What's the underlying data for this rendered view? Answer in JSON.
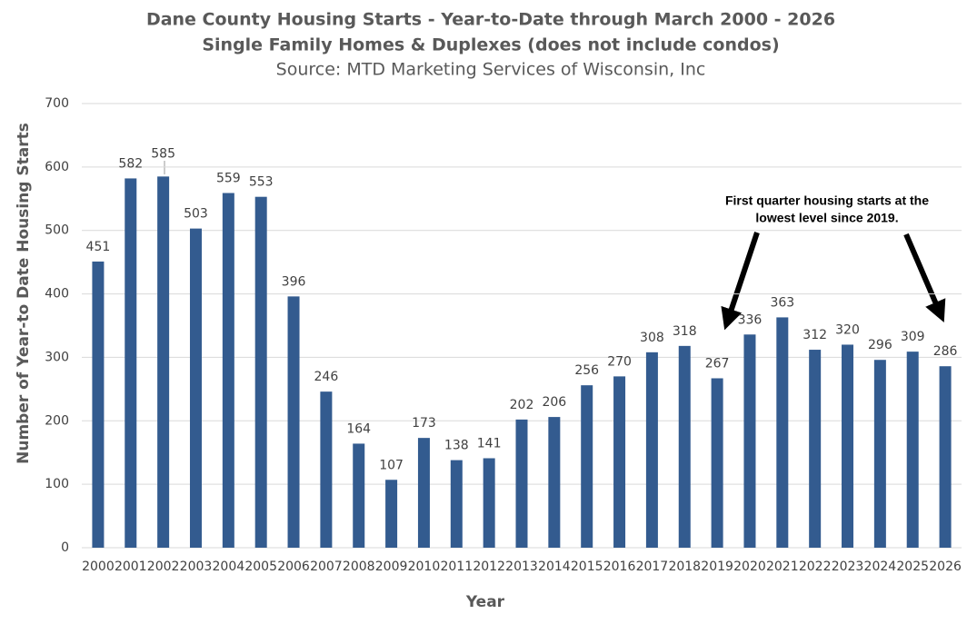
{
  "chart_data": {
    "type": "bar",
    "title": "Dane County Housing Starts - Year-to-Date through March 2000 - 2026",
    "subtitle": "Single Family Homes & Duplexes (does not include condos)",
    "source": "Source: MTD Marketing Services of Wisconsin, Inc",
    "x_label": "Year",
    "y_label": "Number of Year-to Date Housing Starts",
    "annotation": [
      "First quarter housing starts at the",
      "lowest level since 2019."
    ],
    "categories": [
      "2000",
      "2001",
      "2002",
      "2003",
      "2004",
      "2005",
      "2006",
      "2007",
      "2008",
      "2009",
      "2010",
      "2011",
      "2012",
      "2013",
      "2014",
      "2015",
      "2016",
      "2017",
      "2018",
      "2019",
      "2020",
      "2021",
      "2022",
      "2023",
      "2024",
      "2025",
      "2026"
    ],
    "values": [
      451,
      582,
      585,
      503,
      559,
      553,
      396,
      246,
      164,
      107,
      173,
      138,
      141,
      202,
      206,
      256,
      270,
      308,
      318,
      267,
      336,
      363,
      312,
      320,
      296,
      309,
      286
    ],
    "color": "#335b8f",
    "ylim": [
      0,
      700
    ],
    "yticks": [
      0,
      100,
      200,
      300,
      400,
      500,
      600,
      700
    ],
    "grid": true
  }
}
